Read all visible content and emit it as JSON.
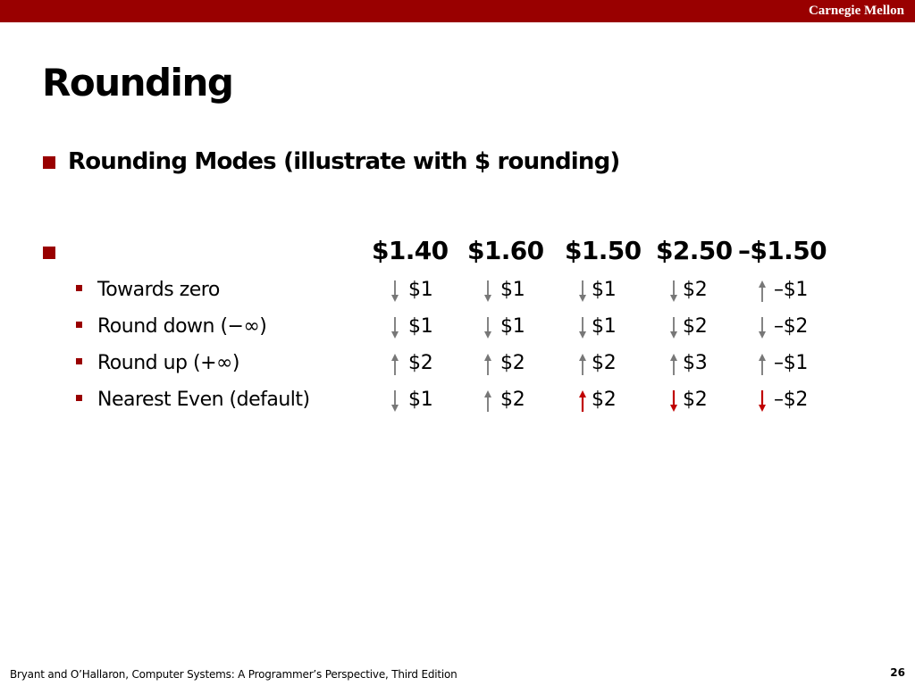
{
  "header": {
    "org": "Carnegie Mellon"
  },
  "slide": {
    "title": "Rounding",
    "bullet": "Rounding Modes (illustrate with $ rounding)"
  },
  "table": {
    "columns": [
      "$1.40",
      "$1.60",
      "$1.50",
      "$2.50",
      "–$1.50"
    ],
    "rows": [
      {
        "label": "Towards zero",
        "cells": [
          {
            "value": "$1",
            "dir": "down",
            "color": "gray"
          },
          {
            "value": "$1",
            "dir": "down",
            "color": "gray"
          },
          {
            "value": "$1",
            "dir": "down",
            "color": "gray"
          },
          {
            "value": "$2",
            "dir": "down",
            "color": "gray"
          },
          {
            "value": "–$1",
            "dir": "up",
            "color": "gray"
          }
        ]
      },
      {
        "label": "Round down (−∞)",
        "cells": [
          {
            "value": "$1",
            "dir": "down",
            "color": "gray"
          },
          {
            "value": "$1",
            "dir": "down",
            "color": "gray"
          },
          {
            "value": "$1",
            "dir": "down",
            "color": "gray"
          },
          {
            "value": "$2",
            "dir": "down",
            "color": "gray"
          },
          {
            "value": "–$2",
            "dir": "down",
            "color": "gray"
          }
        ]
      },
      {
        "label": "Round up (+∞)",
        "cells": [
          {
            "value": "$2",
            "dir": "up",
            "color": "gray"
          },
          {
            "value": "$2",
            "dir": "up",
            "color": "gray"
          },
          {
            "value": "$2",
            "dir": "up",
            "color": "gray"
          },
          {
            "value": "$3",
            "dir": "up",
            "color": "gray"
          },
          {
            "value": "–$1",
            "dir": "up",
            "color": "gray"
          }
        ]
      },
      {
        "label": "Nearest Even (default)",
        "cells": [
          {
            "value": "$1",
            "dir": "down",
            "color": "gray"
          },
          {
            "value": "$2",
            "dir": "up",
            "color": "gray"
          },
          {
            "value": "$2",
            "dir": "up",
            "color": "red"
          },
          {
            "value": "$2",
            "dir": "down",
            "color": "red"
          },
          {
            "value": "–$2",
            "dir": "down",
            "color": "red"
          }
        ]
      }
    ]
  },
  "footer": {
    "citation": "Bryant and O’Hallaron, Computer Systems: A Programmer’s Perspective, Third Edition",
    "page": "26"
  },
  "colors": {
    "brand": "#990000",
    "arrow_gray": "#777777",
    "arrow_red": "#c00000"
  }
}
